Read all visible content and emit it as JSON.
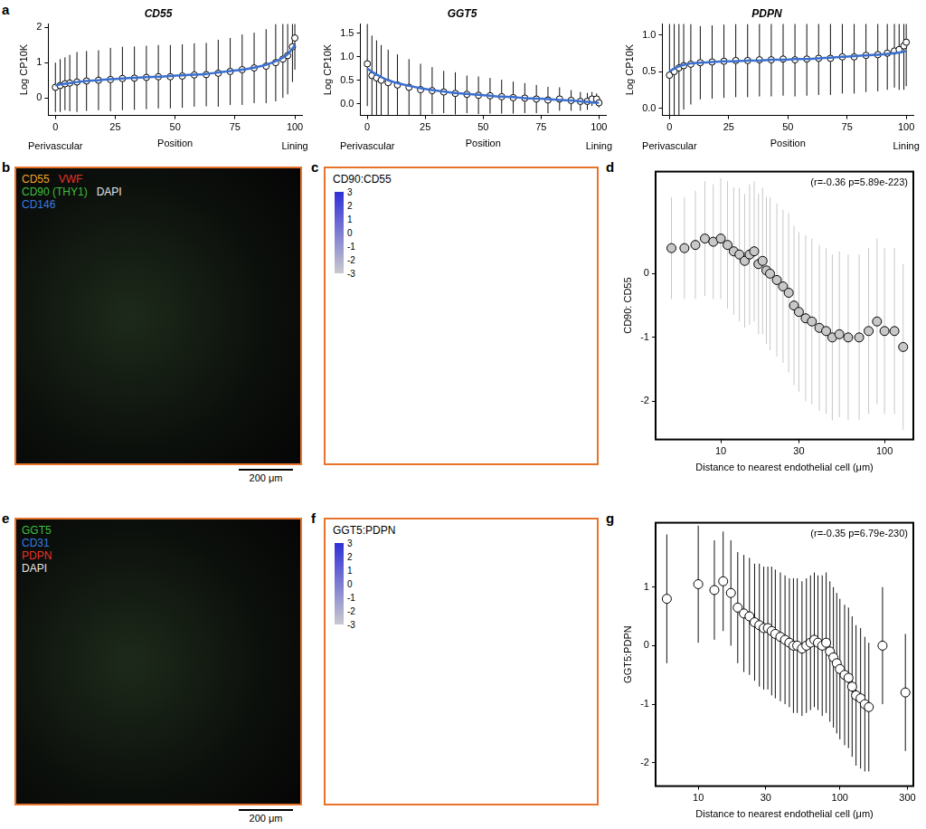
{
  "chart_data": [
    {
      "panel": "a",
      "type": "line",
      "title": "CD55",
      "x_label": "Position",
      "y_label": "Log CP10K",
      "annotations": [
        {
          "text": "Perivascular",
          "x": 0
        },
        {
          "text": "Lining",
          "x": 100
        }
      ],
      "x": [
        0,
        2,
        4,
        6,
        9,
        13,
        18,
        23,
        28,
        33,
        38,
        43,
        48,
        53,
        58,
        63,
        68,
        73,
        78,
        83,
        88,
        92,
        95,
        97,
        99,
        100
      ],
      "series": [
        {
          "color": "#ffffff",
          "marker": "circle",
          "line_style": "none",
          "values": [
            0.3,
            0.35,
            0.4,
            0.42,
            0.45,
            0.48,
            0.5,
            0.52,
            0.55,
            0.56,
            0.58,
            0.6,
            0.6,
            0.62,
            0.65,
            0.66,
            0.7,
            0.75,
            0.8,
            0.85,
            0.9,
            1.0,
            1.1,
            1.2,
            1.45,
            1.7
          ],
          "errors": [
            0.7,
            0.75,
            0.75,
            0.8,
            0.85,
            0.85,
            0.85,
            0.9,
            0.9,
            0.9,
            0.9,
            0.9,
            0.9,
            0.9,
            0.9,
            0.9,
            0.95,
            0.95,
            1.0,
            1.0,
            1.05,
            1.1,
            1.1,
            1.1,
            1.0,
            0.9
          ]
        },
        {
          "color": "#3a6fd0",
          "marker": "none",
          "line_style": "solid",
          "values": [
            0.35,
            0.38,
            0.4,
            0.42,
            0.45,
            0.48,
            0.5,
            0.53,
            0.55,
            0.57,
            0.59,
            0.6,
            0.62,
            0.64,
            0.66,
            0.68,
            0.72,
            0.76,
            0.8,
            0.86,
            0.94,
            1.04,
            1.14,
            1.24,
            1.4,
            1.5
          ]
        }
      ],
      "xlim": [
        -3,
        103
      ],
      "xticks": [
        0,
        25,
        50,
        75,
        100
      ],
      "ylim": [
        -0.5,
        2.1
      ],
      "yticks": [
        0,
        1,
        2
      ],
      "grid": false
    },
    {
      "panel": "",
      "type": "line",
      "title": "GGT5",
      "x_label": "Position",
      "y_label": "Log CP10K",
      "annotations": [
        {
          "text": "Perivascular",
          "x": 0
        },
        {
          "text": "Lining",
          "x": 100
        }
      ],
      "x": [
        0,
        2,
        4,
        6,
        9,
        13,
        18,
        23,
        28,
        33,
        38,
        43,
        48,
        53,
        58,
        63,
        68,
        73,
        78,
        83,
        88,
        92,
        95,
        97,
        99,
        100
      ],
      "series": [
        {
          "color": "#ffffff",
          "marker": "circle",
          "line_style": "none",
          "values": [
            0.85,
            0.6,
            0.55,
            0.5,
            0.45,
            0.4,
            0.35,
            0.3,
            0.28,
            0.25,
            0.22,
            0.2,
            0.18,
            0.17,
            0.15,
            0.13,
            0.12,
            0.1,
            0.08,
            0.1,
            0.07,
            0.05,
            0.05,
            0.1,
            0.1,
            0.02
          ],
          "errors": [
            0.9,
            0.85,
            0.8,
            0.75,
            0.7,
            0.65,
            0.6,
            0.55,
            0.5,
            0.45,
            0.45,
            0.4,
            0.4,
            0.38,
            0.36,
            0.34,
            0.32,
            0.3,
            0.28,
            0.25,
            0.22,
            0.2,
            0.18,
            0.15,
            0.12,
            0.1
          ]
        },
        {
          "color": "#3a6fd0",
          "marker": "none",
          "line_style": "solid",
          "values": [
            0.75,
            0.68,
            0.62,
            0.57,
            0.5,
            0.44,
            0.38,
            0.33,
            0.29,
            0.26,
            0.23,
            0.21,
            0.19,
            0.17,
            0.15,
            0.14,
            0.12,
            0.11,
            0.1,
            0.08,
            0.07,
            0.05,
            0.04,
            0.03,
            0.02,
            0.02
          ]
        }
      ],
      "xlim": [
        -3,
        103
      ],
      "xticks": [
        0,
        25,
        50,
        75,
        100
      ],
      "ylim": [
        -0.25,
        1.7
      ],
      "yticks": [
        {
          "value": 0,
          "label": "0.0"
        },
        {
          "value": 0.5,
          "label": "0.5"
        },
        {
          "value": 1,
          "label": "1.0"
        },
        {
          "value": 1.5,
          "label": "1.5"
        }
      ],
      "grid": false
    },
    {
      "panel": "",
      "type": "line",
      "title": "PDPN",
      "x_label": "Position",
      "y_label": "Log CP10K",
      "annotations": [
        {
          "text": "Perivascular",
          "x": 0
        },
        {
          "text": "Lining",
          "x": 100
        }
      ],
      "x": [
        0,
        2,
        4,
        6,
        9,
        13,
        18,
        23,
        28,
        33,
        38,
        43,
        48,
        53,
        58,
        63,
        68,
        73,
        78,
        83,
        88,
        92,
        95,
        97,
        99,
        100
      ],
      "series": [
        {
          "color": "#ffffff",
          "marker": "circle",
          "line_style": "none",
          "values": [
            0.45,
            0.5,
            0.55,
            0.58,
            0.6,
            0.62,
            0.63,
            0.64,
            0.65,
            0.65,
            0.66,
            0.66,
            0.67,
            0.66,
            0.67,
            0.68,
            0.68,
            0.7,
            0.7,
            0.72,
            0.73,
            0.75,
            0.78,
            0.8,
            0.85,
            0.9
          ],
          "errors": [
            0.8,
            0.8,
            0.7,
            0.6,
            0.55,
            0.5,
            0.5,
            0.5,
            0.5,
            0.5,
            0.5,
            0.5,
            0.5,
            0.5,
            0.5,
            0.5,
            0.5,
            0.5,
            0.5,
            0.5,
            0.5,
            0.5,
            0.5,
            0.55,
            0.6,
            0.6
          ]
        },
        {
          "color": "#3a6fd0",
          "marker": "none",
          "line_style": "solid",
          "values": [
            0.5,
            0.54,
            0.57,
            0.59,
            0.61,
            0.62,
            0.63,
            0.64,
            0.64,
            0.65,
            0.65,
            0.66,
            0.66,
            0.67,
            0.67,
            0.68,
            0.69,
            0.7,
            0.71,
            0.72,
            0.73,
            0.74,
            0.75,
            0.76,
            0.77,
            0.78
          ]
        }
      ],
      "xlim": [
        -3,
        103
      ],
      "xticks": [
        0,
        25,
        50,
        75,
        100
      ],
      "ylim": [
        -0.1,
        1.15
      ],
      "yticks": [
        {
          "value": 0,
          "label": "0.0"
        },
        {
          "value": 0.5,
          "label": "0.5"
        },
        {
          "value": 1,
          "label": "1.0"
        }
      ],
      "grid": false
    },
    {
      "panel": "d",
      "type": "scatter",
      "log": "x",
      "x_label": "Distance to nearest endothelial cell (μm)",
      "y_label": "CD90: CD55",
      "annotations": [
        {
          "text": "(r=-0.36 p=5.89e-223)"
        }
      ],
      "x": [
        5,
        6,
        7,
        8,
        9,
        10,
        11,
        12,
        13,
        14,
        15,
        16,
        17,
        18,
        19,
        20,
        22,
        24,
        26,
        28,
        30,
        33,
        36,
        40,
        44,
        48,
        53,
        60,
        70,
        80,
        90,
        100,
        115,
        130
      ],
      "series": [
        {
          "color": "#c8c8c8",
          "marker": "circle",
          "line_style": "none",
          "values": [
            0.4,
            0.4,
            0.45,
            0.55,
            0.5,
            0.55,
            0.45,
            0.35,
            0.3,
            0.2,
            0.3,
            0.35,
            0.15,
            0.2,
            0.05,
            0.0,
            -0.1,
            -0.2,
            -0.3,
            -0.5,
            -0.6,
            -0.7,
            -0.75,
            -0.85,
            -0.9,
            -1.0,
            -0.95,
            -1.0,
            -1.0,
            -0.9,
            -0.75,
            -0.9,
            -0.9,
            -1.15
          ],
          "errors": [
            0.8,
            0.8,
            0.85,
            0.9,
            0.9,
            0.95,
            1.0,
            1.0,
            1.05,
            1.05,
            1.1,
            1.1,
            1.1,
            1.15,
            1.15,
            1.2,
            1.2,
            1.2,
            1.25,
            1.25,
            1.25,
            1.3,
            1.3,
            1.3,
            1.3,
            1.3,
            1.3,
            1.3,
            1.3,
            1.3,
            1.3,
            1.3,
            1.3,
            1.3
          ]
        }
      ],
      "xlim": [
        4,
        150
      ],
      "xticks": [
        10,
        30,
        100
      ],
      "ylim": [
        -2.6,
        1.6
      ],
      "yticks": [
        -2,
        -1,
        0
      ],
      "grid": false
    },
    {
      "panel": "g",
      "type": "scatter",
      "log": "x",
      "x_label": "Distance to nearest endothelial cell (μm)",
      "y_label": "GGT5:PDPN",
      "annotations": [
        {
          "text": "(r=-0.35 p=6.79e-230)"
        }
      ],
      "x": [
        6,
        10,
        13,
        15,
        17,
        19,
        21,
        23,
        25,
        27,
        29,
        31,
        33,
        35,
        38,
        41,
        44,
        47,
        50,
        54,
        58,
        62,
        66,
        70,
        75,
        80,
        85,
        90,
        95,
        100,
        108,
        115,
        122,
        130,
        140,
        150,
        160,
        200,
        290
      ],
      "series": [
        {
          "color": "#ffffff",
          "marker": "circle",
          "line_style": "none",
          "values": [
            0.8,
            1.05,
            0.95,
            1.1,
            0.9,
            0.65,
            0.55,
            0.5,
            0.4,
            0.35,
            0.3,
            0.3,
            0.25,
            0.2,
            0.15,
            0.1,
            0.05,
            0.0,
            0.0,
            -0.05,
            0.0,
            0.05,
            0.1,
            0.05,
            0.0,
            0.05,
            -0.1,
            -0.2,
            -0.3,
            -0.4,
            -0.5,
            -0.55,
            -0.7,
            -0.85,
            -0.9,
            -1.0,
            -1.05,
            0.0,
            -0.8
          ],
          "errors": [
            1.1,
            1.0,
            0.85,
            0.85,
            0.9,
            0.95,
            1.0,
            1.0,
            1.0,
            1.05,
            1.05,
            1.05,
            1.1,
            1.1,
            1.1,
            1.1,
            1.1,
            1.15,
            1.15,
            1.15,
            1.15,
            1.15,
            1.15,
            1.15,
            1.2,
            1.2,
            1.2,
            1.2,
            1.2,
            1.2,
            1.2,
            1.2,
            1.2,
            1.2,
            1.2,
            1.15,
            1.1,
            1.0,
            1.0
          ]
        }
      ],
      "xlim": [
        5,
        330
      ],
      "xticks": [
        10,
        30,
        100,
        300
      ],
      "ylim": [
        -2.4,
        2.1
      ],
      "yticks": [
        -2,
        -1,
        0,
        1
      ],
      "grid": false
    }
  ],
  "images": [
    {
      "panel": "b",
      "scale_bar": "200 μm",
      "channels": [
        [
          {
            "text": "CD55",
            "color": "#f2a32a"
          },
          {
            "text": "VWF",
            "color": "#e8322a"
          }
        ],
        [
          {
            "text": "CD90 (THY1)",
            "color": "#3fbf3f"
          },
          {
            "text": "DAPI",
            "color": "#e6e6e6"
          }
        ],
        [
          {
            "text": "CD146",
            "color": "#3a7be0"
          }
        ]
      ]
    },
    {
      "panel": "e",
      "scale_bar": "200 μm",
      "channels": [
        [
          {
            "text": "GGT5",
            "color": "#3fbf3f"
          }
        ],
        [
          {
            "text": "CD31",
            "color": "#3a7be0"
          }
        ],
        [
          {
            "text": "PDPN",
            "color": "#e8322a"
          }
        ],
        [
          {
            "text": "DAPI",
            "color": "#e6e6e6"
          }
        ]
      ]
    }
  ],
  "maps": [
    {
      "panel": "c",
      "title": "CD90:CD55",
      "colorbar_range": [
        -3,
        3
      ],
      "colorbar_ticks": [
        3,
        2,
        1,
        0,
        -1,
        -2,
        -3
      ],
      "colorbar_colors": [
        "#c9c9cf",
        "#2f2fd6"
      ]
    },
    {
      "panel": "f",
      "title": "GGT5:PDPN",
      "colorbar_range": [
        -3,
        3
      ],
      "colorbar_ticks": [
        3,
        2,
        1,
        0,
        -1,
        -2,
        -3
      ],
      "colorbar_colors": [
        "#c9c9cf",
        "#2f2fd6"
      ]
    }
  ]
}
